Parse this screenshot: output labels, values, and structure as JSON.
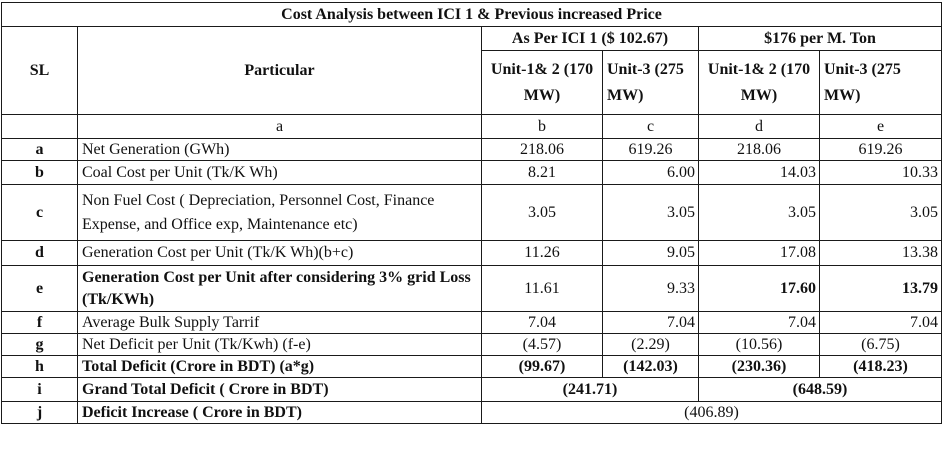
{
  "title": "Cost Analysis between ICI 1 & Previous increased Price",
  "headers": {
    "sl": "SL",
    "particular": "Particular",
    "group1": "As Per ICI 1 ($ 102.67)",
    "group2": "$176 per M. Ton",
    "unit12": "Unit-1& 2 (170 MW)",
    "unit3": "Unit-3 (275 MW)"
  },
  "letters": {
    "particular": "a",
    "b": "b",
    "c": "c",
    "d": "d",
    "e": "e"
  },
  "rows": [
    {
      "sl": "a",
      "particular": "Net Generation (GWh)",
      "b": "218.06",
      "c": "619.26",
      "d": "218.06",
      "e": "619.26"
    },
    {
      "sl": "b",
      "particular": "Coal Cost per Unit  (Tk/K Wh)",
      "b": "8.21",
      "c": "6.00",
      "d": "14.03",
      "e": "10.33"
    },
    {
      "sl": "c",
      "particular": "Non Fuel Cost ( Depreciation, Personnel Cost, Finance Expense, and Office exp, Maintenance etc)",
      "b": "3.05",
      "c": "3.05",
      "d": "3.05",
      "e": "3.05"
    },
    {
      "sl": "d",
      "particular": "Generation Cost per Unit  (Tk/K Wh)(b+c)",
      "b": "11.26",
      "c": "9.05",
      "d": "17.08",
      "e": "13.38"
    },
    {
      "sl": "e",
      "particular": "Generation Cost per Unit after considering 3% grid Loss  (Tk/KWh)",
      "b": "11.61",
      "c": "9.33",
      "d": "17.60",
      "e": "13.79"
    },
    {
      "sl": "f",
      "particular": "Average Bulk Supply Tarrif",
      "b": "7.04",
      "c": "7.04",
      "d": "7.04",
      "e": "7.04"
    },
    {
      "sl": "g",
      "particular": "Net Deficit per Unit (Tk/Kwh) (f-e)",
      "b": "(4.57)",
      "c": "(2.29)",
      "d": "(10.56)",
      "e": "(6.75)"
    },
    {
      "sl": "h",
      "particular": "Total Deficit (Crore in BDT) (a*g)",
      "b": "(99.67)",
      "c": "(142.03)",
      "d": "(230.36)",
      "e": "(418.23)"
    }
  ],
  "grand_total": {
    "sl": "i",
    "label": "Grand Total Deficit ( Crore in BDT)",
    "group1": "(241.71)",
    "group2": "(648.59)"
  },
  "deficit_increase": {
    "sl": "j",
    "label": "Deficit Increase ( Crore in BDT)",
    "value": "(406.89)"
  }
}
